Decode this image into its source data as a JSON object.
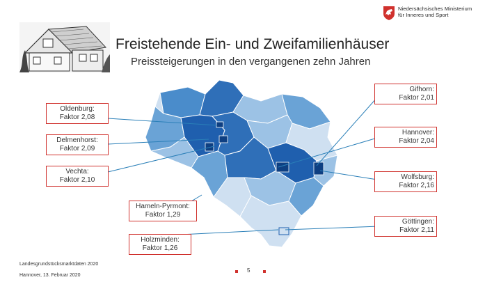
{
  "header": {
    "title": "Freistehende Ein- und Zweifamilienhäuser",
    "subtitle": "Preissteigerungen in den vergangenen zehn Jahren",
    "ministry_line1": "Niedersächsisches Ministerium",
    "ministry_line2": "für Inneres und Sport"
  },
  "callouts": {
    "gifhorn": {
      "name": "Gifhorn:",
      "factor": "Faktor 2,01"
    },
    "oldenburg": {
      "name": "Oldenburg:",
      "factor": "Faktor 2,08"
    },
    "hannover": {
      "name": "Hannover:",
      "factor": "Faktor 2,04"
    },
    "delmenhorst": {
      "name": "Delmenhorst:",
      "factor": "Faktor 2,09"
    },
    "vechta": {
      "name": "Vechta:",
      "factor": "Faktor 2,10"
    },
    "wolfsburg": {
      "name": "Wolfsburg:",
      "factor": "Faktor 2,16"
    },
    "hameln": {
      "name": "Hameln-Pyrmont:",
      "factor": "Faktor 1,29"
    },
    "goettingen": {
      "name": "Göttingen:",
      "factor": "Faktor 2,11"
    },
    "holzminden": {
      "name": "Holzminden:",
      "factor": "Faktor 1,26"
    }
  },
  "footer": {
    "org": "Landesgrundstücksmarktdaten 2020",
    "date": "Hannover, 13. Februar 2020",
    "page": "5"
  },
  "colors": {
    "accent": "#d0312d",
    "map_dark": "#1f5fae",
    "map_mid": "#4a8ccb",
    "map_light": "#9cc2e5",
    "map_pale": "#cfe0f1"
  }
}
